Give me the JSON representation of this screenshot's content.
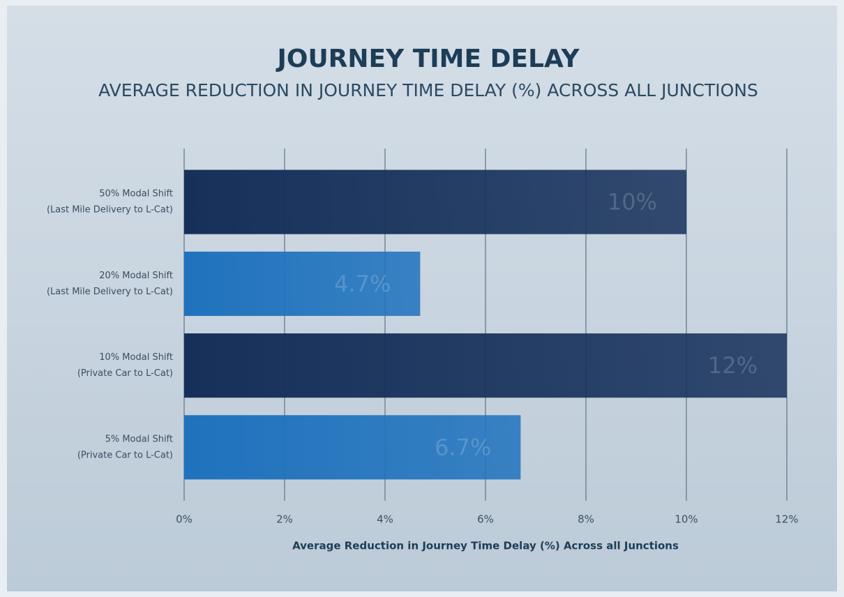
{
  "chart_data": {
    "type": "hbar",
    "title": "JOURNEY TIME DELAY",
    "subtitle": "AVERAGE REDUCTION IN JOURNEY TIME DELAY (%) ACROSS ALL JUNCTIONS",
    "x_label": "Average Reduction in Journey Time Delay (%) Across all Junctions",
    "categories": [
      [
        "50% Modal Shift",
        "(Last Mile Delivery to L-Cat)"
      ],
      [
        "20% Modal Shift",
        "(Last Mile Delivery to L-Cat)"
      ],
      [
        "10% Modal Shift",
        "(Private Car to L-Cat)"
      ],
      [
        "5% Modal Shift",
        "(Private Car to L-Cat)"
      ]
    ],
    "values": [
      10,
      4.7,
      12,
      6.7
    ],
    "value_labels": [
      "10%",
      "4.7%",
      "12%",
      "6.7%"
    ],
    "colors": [
      "#16305a",
      "#1f72bd",
      "#16305a",
      "#1f72bd"
    ],
    "xlim": [
      0,
      12
    ],
    "xticks": [
      {
        "value": 0,
        "label": "0%"
      },
      {
        "value": 2,
        "label": "2%"
      },
      {
        "value": 4,
        "label": "4%"
      },
      {
        "value": 6,
        "label": "6%"
      },
      {
        "value": 8,
        "label": "8%"
      },
      {
        "value": 10,
        "label": "10%"
      },
      {
        "value": 12,
        "label": "12%"
      }
    ],
    "grid": true
  }
}
